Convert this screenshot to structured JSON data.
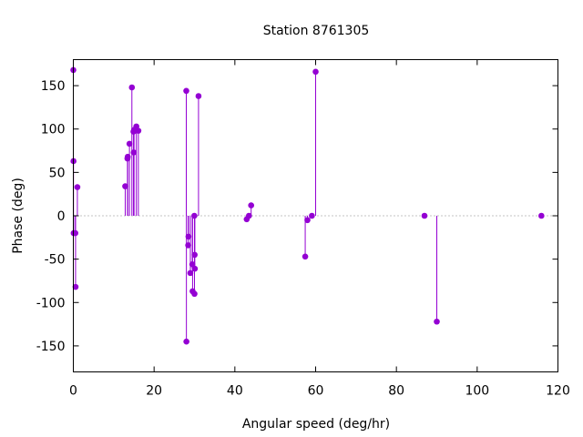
{
  "chart_data": {
    "type": "scatter",
    "style": "impulses-with-points",
    "title": "Station 8761305",
    "xlabel": "Angular speed (deg/hr)",
    "ylabel": "Phase (deg)",
    "xlim": [
      0,
      120
    ],
    "ylim": [
      -180,
      180
    ],
    "xticks": [
      0,
      20,
      40,
      60,
      80,
      100,
      120
    ],
    "yticks": [
      -150,
      -100,
      -50,
      0,
      50,
      100,
      150
    ],
    "zero_line": true,
    "grid": false,
    "color": "#9400d3",
    "points": [
      {
        "x": 0.0,
        "y": 168
      },
      {
        "x": 0.04,
        "y": 63
      },
      {
        "x": 0.08,
        "y": -20
      },
      {
        "x": 0.5,
        "y": -20
      },
      {
        "x": 0.55,
        "y": -82
      },
      {
        "x": 1.0,
        "y": 33
      },
      {
        "x": 12.85,
        "y": 34
      },
      {
        "x": 13.4,
        "y": 66
      },
      {
        "x": 13.47,
        "y": 68
      },
      {
        "x": 13.9,
        "y": 83
      },
      {
        "x": 14.5,
        "y": 148
      },
      {
        "x": 14.9,
        "y": 97
      },
      {
        "x": 14.96,
        "y": 73
      },
      {
        "x": 15.04,
        "y": 99
      },
      {
        "x": 15.6,
        "y": 103
      },
      {
        "x": 16.1,
        "y": 98
      },
      {
        "x": 27.97,
        "y": 144
      },
      {
        "x": 28.0,
        "y": -145
      },
      {
        "x": 28.44,
        "y": -34
      },
      {
        "x": 28.51,
        "y": -24
      },
      {
        "x": 28.98,
        "y": -66
      },
      {
        "x": 29.46,
        "y": -56
      },
      {
        "x": 29.53,
        "y": -87
      },
      {
        "x": 29.96,
        "y": 0
      },
      {
        "x": 30.0,
        "y": -90
      },
      {
        "x": 30.04,
        "y": -45
      },
      {
        "x": 30.08,
        "y": -61
      },
      {
        "x": 31.0,
        "y": 138
      },
      {
        "x": 42.93,
        "y": -4
      },
      {
        "x": 43.48,
        "y": 0
      },
      {
        "x": 44.03,
        "y": 12
      },
      {
        "x": 57.42,
        "y": -47
      },
      {
        "x": 57.97,
        "y": -5
      },
      {
        "x": 59.07,
        "y": 0
      },
      {
        "x": 60.0,
        "y": 166
      },
      {
        "x": 86.95,
        "y": 0
      },
      {
        "x": 90.0,
        "y": -122
      },
      {
        "x": 115.9,
        "y": 0
      }
    ]
  }
}
